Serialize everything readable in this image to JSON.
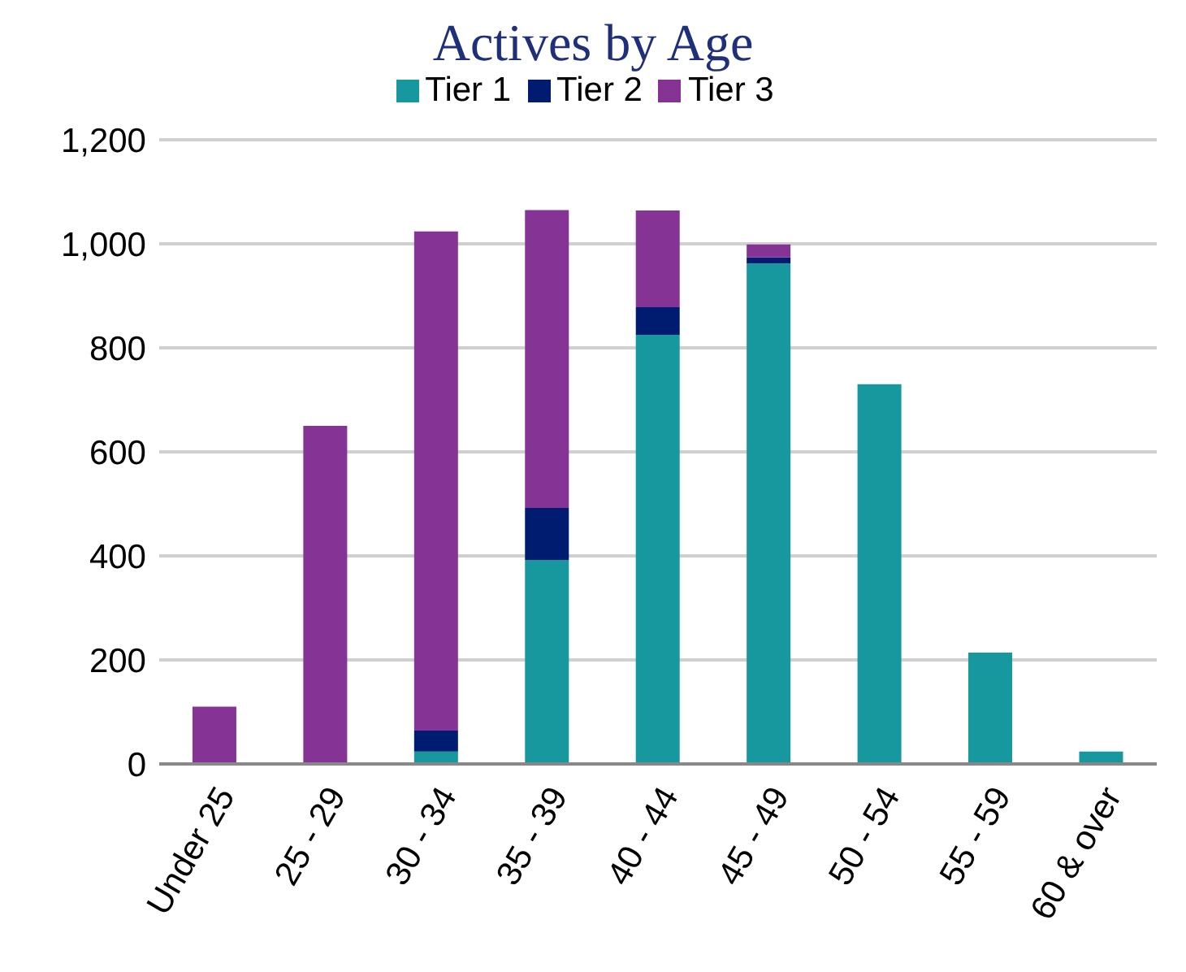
{
  "chart_data": {
    "type": "bar",
    "title": "Actives by Age",
    "stacked": true,
    "categories": [
      "Under 25",
      "25 - 29",
      "30 - 34",
      "35 - 39",
      "40 - 44",
      "45 - 49",
      "50 - 54",
      "55 - 59",
      "60 & over"
    ],
    "series": [
      {
        "name": "Tier 1",
        "color": "#17979e",
        "values": [
          0,
          0,
          24,
          392,
          825,
          962,
          730,
          214,
          24
        ]
      },
      {
        "name": "Tier 2",
        "color": "#001c70",
        "values": [
          0,
          0,
          40,
          100,
          53,
          12,
          0,
          0,
          0
        ]
      },
      {
        "name": "Tier 3",
        "color": "#853496",
        "values": [
          110,
          650,
          960,
          573,
          186,
          25,
          0,
          0,
          0
        ]
      }
    ],
    "ylim": [
      0,
      1200
    ],
    "yticks": [
      0,
      {
        "value": 200,
        "label": "200"
      },
      {
        "value": 400,
        "label": "400"
      },
      {
        "value": 600,
        "label": "600"
      },
      {
        "value": 800,
        "label": "800"
      },
      {
        "value": 1000,
        "label": "1,000"
      },
      {
        "value": 1200,
        "label": "1,200"
      }
    ],
    "grid": "y",
    "legend": "top"
  }
}
